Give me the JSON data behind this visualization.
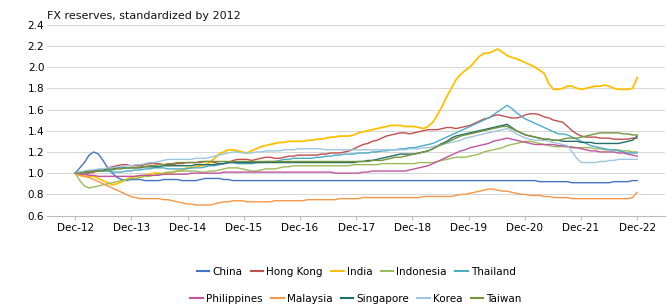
{
  "title": "FX reserves, standardized by 2012",
  "xlabels": [
    "Dec-12",
    "Dec-13",
    "Dec-14",
    "Dec-15",
    "Dec-16",
    "Dec-17",
    "Dec-18",
    "Dec-19",
    "Dec-20",
    "Dec-21",
    "Dec-22"
  ],
  "ylim": [
    0.6,
    2.4
  ],
  "yticks": [
    0.6,
    0.8,
    1.0,
    1.2,
    1.4,
    1.6,
    1.8,
    2.0,
    2.2,
    2.4
  ],
  "series": {
    "China": {
      "color": "#4472C4",
      "lw": 1.0
    },
    "Hong Kong": {
      "color": "#C0504D",
      "lw": 1.0
    },
    "India": {
      "color": "#FFC000",
      "lw": 1.3
    },
    "Indonesia": {
      "color": "#9BBB59",
      "lw": 1.0
    },
    "Thailand": {
      "color": "#4BACC6",
      "lw": 1.0
    },
    "Philippines": {
      "color": "#C055A0",
      "lw": 1.0
    },
    "Malaysia": {
      "color": "#F79646",
      "lw": 1.0
    },
    "Singapore": {
      "color": "#1F7065",
      "lw": 1.0
    },
    "Korea": {
      "color": "#9EC6E0",
      "lw": 1.0
    },
    "Taiwan": {
      "color": "#76933C",
      "lw": 1.0
    }
  },
  "legend_row1": [
    "China",
    "Hong Kong",
    "India",
    "Indonesia",
    "Thailand"
  ],
  "legend_row2": [
    "Philippines",
    "Malaysia",
    "Singapore",
    "Korea",
    "Taiwan"
  ],
  "data": {
    "China": [
      1.0,
      1.05,
      1.1,
      1.17,
      1.2,
      1.18,
      1.12,
      1.05,
      1.0,
      0.96,
      0.94,
      0.93,
      0.94,
      0.94,
      0.94,
      0.93,
      0.93,
      0.93,
      0.93,
      0.94,
      0.94,
      0.94,
      0.94,
      0.93,
      0.93,
      0.93,
      0.93,
      0.94,
      0.95,
      0.95,
      0.95,
      0.95,
      0.94,
      0.94,
      0.93,
      0.93,
      0.93,
      0.93,
      0.93,
      0.93,
      0.93,
      0.93,
      0.93,
      0.93,
      0.93,
      0.93,
      0.93,
      0.93,
      0.93,
      0.93,
      0.93,
      0.93,
      0.93,
      0.93,
      0.93,
      0.93,
      0.93,
      0.93,
      0.93,
      0.93,
      0.93,
      0.93,
      0.93,
      0.93,
      0.93,
      0.93,
      0.93,
      0.93,
      0.93,
      0.93,
      0.93,
      0.93,
      0.93,
      0.93,
      0.93,
      0.93,
      0.93,
      0.93,
      0.93,
      0.93,
      0.93,
      0.93,
      0.93,
      0.93,
      0.93,
      0.93,
      0.93,
      0.93,
      0.93,
      0.93,
      0.93,
      0.93,
      0.93,
      0.93,
      0.93,
      0.93,
      0.93,
      0.93,
      0.93,
      0.93,
      0.92,
      0.92,
      0.92,
      0.92,
      0.92,
      0.92,
      0.92,
      0.91,
      0.91,
      0.91,
      0.91,
      0.91,
      0.91,
      0.91,
      0.91,
      0.91,
      0.92,
      0.92,
      0.92,
      0.92,
      0.93,
      0.93
    ],
    "Hong Kong": [
      1.0,
      0.99,
      0.99,
      1.0,
      1.01,
      1.02,
      1.03,
      1.05,
      1.06,
      1.07,
      1.08,
      1.08,
      1.07,
      1.07,
      1.07,
      1.08,
      1.09,
      1.09,
      1.09,
      1.08,
      1.08,
      1.08,
      1.09,
      1.09,
      1.1,
      1.1,
      1.1,
      1.1,
      1.11,
      1.11,
      1.1,
      1.09,
      1.09,
      1.1,
      1.12,
      1.13,
      1.13,
      1.13,
      1.12,
      1.13,
      1.14,
      1.15,
      1.15,
      1.14,
      1.14,
      1.15,
      1.16,
      1.16,
      1.17,
      1.17,
      1.17,
      1.17,
      1.17,
      1.18,
      1.18,
      1.19,
      1.19,
      1.19,
      1.2,
      1.21,
      1.23,
      1.25,
      1.27,
      1.28,
      1.3,
      1.31,
      1.33,
      1.35,
      1.36,
      1.37,
      1.38,
      1.38,
      1.37,
      1.38,
      1.39,
      1.4,
      1.41,
      1.41,
      1.41,
      1.42,
      1.43,
      1.43,
      1.42,
      1.43,
      1.44,
      1.45,
      1.47,
      1.49,
      1.51,
      1.52,
      1.54,
      1.55,
      1.54,
      1.53,
      1.52,
      1.52,
      1.53,
      1.55,
      1.56,
      1.56,
      1.55,
      1.53,
      1.52,
      1.5,
      1.49,
      1.48,
      1.44,
      1.4,
      1.37,
      1.35,
      1.34,
      1.34,
      1.34,
      1.33,
      1.33,
      1.33,
      1.32,
      1.32,
      1.32,
      1.32,
      1.33,
      1.33
    ],
    "India": [
      1.0,
      0.98,
      0.97,
      0.97,
      0.97,
      0.95,
      0.93,
      0.91,
      0.89,
      0.9,
      0.92,
      0.94,
      0.96,
      0.97,
      0.97,
      0.98,
      0.99,
      1.0,
      1.0,
      0.99,
      1.0,
      1.01,
      1.02,
      1.03,
      1.05,
      1.05,
      1.06,
      1.07,
      1.08,
      1.1,
      1.14,
      1.18,
      1.2,
      1.22,
      1.22,
      1.21,
      1.2,
      1.19,
      1.21,
      1.23,
      1.25,
      1.26,
      1.27,
      1.28,
      1.29,
      1.29,
      1.3,
      1.3,
      1.3,
      1.3,
      1.31,
      1.31,
      1.32,
      1.32,
      1.33,
      1.34,
      1.34,
      1.35,
      1.35,
      1.35,
      1.36,
      1.38,
      1.39,
      1.4,
      1.41,
      1.42,
      1.43,
      1.44,
      1.45,
      1.45,
      1.45,
      1.44,
      1.44,
      1.44,
      1.43,
      1.42,
      1.44,
      1.48,
      1.55,
      1.63,
      1.72,
      1.8,
      1.88,
      1.93,
      1.97,
      2.0,
      2.05,
      2.1,
      2.13,
      2.13,
      2.15,
      2.17,
      2.14,
      2.11,
      2.09,
      2.08,
      2.06,
      2.04,
      2.02,
      2.0,
      1.97,
      1.94,
      1.84,
      1.79,
      1.79,
      1.8,
      1.82,
      1.82,
      1.8,
      1.79,
      1.8,
      1.81,
      1.82,
      1.82,
      1.83,
      1.82,
      1.8,
      1.79,
      1.79,
      1.79,
      1.8,
      1.9
    ],
    "Indonesia": [
      1.0,
      0.93,
      0.88,
      0.86,
      0.87,
      0.88,
      0.89,
      0.9,
      0.91,
      0.92,
      0.93,
      0.94,
      0.95,
      0.95,
      0.96,
      0.97,
      0.97,
      0.98,
      0.99,
      1.0,
      1.01,
      1.01,
      1.02,
      1.02,
      1.02,
      1.02,
      1.02,
      1.01,
      1.01,
      1.02,
      1.02,
      1.03,
      1.04,
      1.05,
      1.05,
      1.05,
      1.04,
      1.03,
      1.02,
      1.02,
      1.03,
      1.04,
      1.04,
      1.04,
      1.05,
      1.06,
      1.06,
      1.07,
      1.07,
      1.07,
      1.07,
      1.07,
      1.07,
      1.07,
      1.07,
      1.07,
      1.07,
      1.07,
      1.07,
      1.07,
      1.08,
      1.08,
      1.08,
      1.08,
      1.08,
      1.08,
      1.09,
      1.09,
      1.09,
      1.09,
      1.09,
      1.09,
      1.09,
      1.09,
      1.1,
      1.1,
      1.1,
      1.1,
      1.11,
      1.12,
      1.13,
      1.14,
      1.15,
      1.15,
      1.15,
      1.16,
      1.17,
      1.18,
      1.2,
      1.21,
      1.22,
      1.23,
      1.24,
      1.26,
      1.27,
      1.28,
      1.29,
      1.3,
      1.3,
      1.29,
      1.28,
      1.27,
      1.26,
      1.25,
      1.25,
      1.25,
      1.25,
      1.25,
      1.24,
      1.24,
      1.24,
      1.24,
      1.23,
      1.23,
      1.22,
      1.22,
      1.22,
      1.22,
      1.21,
      1.21,
      1.2,
      1.2
    ],
    "Thailand": [
      1.0,
      1.0,
      1.0,
      1.01,
      1.02,
      1.02,
      1.02,
      1.02,
      1.01,
      1.01,
      1.01,
      1.02,
      1.02,
      1.03,
      1.03,
      1.04,
      1.04,
      1.05,
      1.05,
      1.05,
      1.04,
      1.04,
      1.04,
      1.04,
      1.04,
      1.05,
      1.05,
      1.05,
      1.06,
      1.07,
      1.07,
      1.08,
      1.09,
      1.1,
      1.1,
      1.09,
      1.09,
      1.09,
      1.09,
      1.1,
      1.1,
      1.11,
      1.11,
      1.11,
      1.12,
      1.13,
      1.13,
      1.14,
      1.14,
      1.14,
      1.14,
      1.14,
      1.15,
      1.15,
      1.16,
      1.16,
      1.17,
      1.17,
      1.18,
      1.18,
      1.18,
      1.19,
      1.19,
      1.19,
      1.2,
      1.2,
      1.21,
      1.21,
      1.22,
      1.22,
      1.23,
      1.23,
      1.24,
      1.24,
      1.25,
      1.26,
      1.27,
      1.28,
      1.3,
      1.32,
      1.34,
      1.36,
      1.38,
      1.4,
      1.42,
      1.44,
      1.46,
      1.48,
      1.5,
      1.52,
      1.55,
      1.58,
      1.61,
      1.64,
      1.61,
      1.57,
      1.54,
      1.51,
      1.49,
      1.47,
      1.45,
      1.43,
      1.41,
      1.39,
      1.37,
      1.37,
      1.36,
      1.34,
      1.32,
      1.3,
      1.28,
      1.26,
      1.25,
      1.24,
      1.23,
      1.22,
      1.22,
      1.21,
      1.2,
      1.19,
      1.19,
      1.19
    ],
    "Philippines": [
      1.0,
      0.99,
      0.99,
      0.98,
      0.98,
      0.97,
      0.97,
      0.97,
      0.97,
      0.97,
      0.97,
      0.97,
      0.97,
      0.97,
      0.98,
      0.98,
      0.98,
      0.98,
      0.98,
      0.99,
      0.99,
      0.99,
      0.99,
      0.99,
      0.99,
      1.0,
      1.0,
      1.0,
      1.0,
      1.0,
      1.0,
      1.0,
      1.01,
      1.01,
      1.01,
      1.01,
      1.01,
      1.01,
      1.01,
      1.01,
      1.01,
      1.01,
      1.01,
      1.01,
      1.01,
      1.01,
      1.01,
      1.01,
      1.01,
      1.01,
      1.01,
      1.01,
      1.01,
      1.01,
      1.01,
      1.01,
      1.0,
      1.0,
      1.0,
      1.0,
      1.0,
      1.0,
      1.01,
      1.01,
      1.02,
      1.02,
      1.02,
      1.02,
      1.02,
      1.02,
      1.02,
      1.02,
      1.03,
      1.04,
      1.05,
      1.06,
      1.07,
      1.09,
      1.11,
      1.13,
      1.15,
      1.17,
      1.19,
      1.21,
      1.22,
      1.24,
      1.25,
      1.26,
      1.27,
      1.28,
      1.3,
      1.31,
      1.32,
      1.33,
      1.32,
      1.31,
      1.3,
      1.29,
      1.28,
      1.27,
      1.27,
      1.27,
      1.27,
      1.27,
      1.26,
      1.26,
      1.25,
      1.24,
      1.24,
      1.23,
      1.22,
      1.21,
      1.21,
      1.2,
      1.2,
      1.2,
      1.2,
      1.19,
      1.19,
      1.18,
      1.17,
      1.16
    ],
    "Malaysia": [
      1.0,
      0.98,
      0.97,
      0.96,
      0.94,
      0.92,
      0.9,
      0.88,
      0.86,
      0.84,
      0.82,
      0.8,
      0.78,
      0.77,
      0.76,
      0.76,
      0.76,
      0.76,
      0.76,
      0.75,
      0.75,
      0.74,
      0.73,
      0.72,
      0.71,
      0.71,
      0.7,
      0.7,
      0.7,
      0.7,
      0.71,
      0.72,
      0.73,
      0.73,
      0.74,
      0.74,
      0.74,
      0.73,
      0.73,
      0.73,
      0.73,
      0.73,
      0.73,
      0.74,
      0.74,
      0.74,
      0.74,
      0.74,
      0.74,
      0.74,
      0.75,
      0.75,
      0.75,
      0.75,
      0.75,
      0.75,
      0.75,
      0.76,
      0.76,
      0.76,
      0.76,
      0.76,
      0.77,
      0.77,
      0.77,
      0.77,
      0.77,
      0.77,
      0.77,
      0.77,
      0.77,
      0.77,
      0.77,
      0.77,
      0.77,
      0.78,
      0.78,
      0.78,
      0.78,
      0.78,
      0.78,
      0.78,
      0.79,
      0.8,
      0.8,
      0.81,
      0.82,
      0.83,
      0.84,
      0.85,
      0.85,
      0.84,
      0.83,
      0.83,
      0.82,
      0.81,
      0.8,
      0.8,
      0.79,
      0.79,
      0.79,
      0.78,
      0.78,
      0.77,
      0.77,
      0.77,
      0.77,
      0.76,
      0.76,
      0.76,
      0.76,
      0.76,
      0.76,
      0.76,
      0.76,
      0.76,
      0.76,
      0.76,
      0.76,
      0.76,
      0.77,
      0.82
    ],
    "Singapore": [
      1.0,
      1.01,
      1.01,
      1.02,
      1.02,
      1.03,
      1.03,
      1.04,
      1.04,
      1.05,
      1.05,
      1.05,
      1.05,
      1.05,
      1.05,
      1.06,
      1.06,
      1.06,
      1.06,
      1.07,
      1.07,
      1.07,
      1.07,
      1.07,
      1.07,
      1.07,
      1.08,
      1.08,
      1.08,
      1.08,
      1.08,
      1.09,
      1.09,
      1.1,
      1.1,
      1.1,
      1.1,
      1.1,
      1.1,
      1.1,
      1.1,
      1.1,
      1.1,
      1.1,
      1.1,
      1.1,
      1.1,
      1.1,
      1.1,
      1.1,
      1.1,
      1.1,
      1.1,
      1.1,
      1.1,
      1.1,
      1.1,
      1.1,
      1.1,
      1.1,
      1.1,
      1.11,
      1.11,
      1.12,
      1.12,
      1.13,
      1.14,
      1.15,
      1.16,
      1.17,
      1.18,
      1.18,
      1.18,
      1.18,
      1.19,
      1.2,
      1.21,
      1.23,
      1.26,
      1.28,
      1.3,
      1.33,
      1.35,
      1.36,
      1.37,
      1.38,
      1.39,
      1.4,
      1.41,
      1.42,
      1.43,
      1.44,
      1.45,
      1.46,
      1.43,
      1.4,
      1.38,
      1.36,
      1.35,
      1.34,
      1.33,
      1.32,
      1.32,
      1.31,
      1.31,
      1.3,
      1.3,
      1.3,
      1.3,
      1.29,
      1.29,
      1.29,
      1.28,
      1.28,
      1.28,
      1.28,
      1.28,
      1.28,
      1.29,
      1.3,
      1.31,
      1.35
    ],
    "Korea": [
      1.0,
      1.01,
      1.02,
      1.03,
      1.03,
      1.04,
      1.04,
      1.05,
      1.05,
      1.06,
      1.06,
      1.07,
      1.07,
      1.08,
      1.08,
      1.09,
      1.1,
      1.1,
      1.11,
      1.12,
      1.13,
      1.13,
      1.13,
      1.13,
      1.13,
      1.13,
      1.14,
      1.14,
      1.14,
      1.15,
      1.16,
      1.17,
      1.18,
      1.19,
      1.2,
      1.2,
      1.19,
      1.19,
      1.19,
      1.2,
      1.2,
      1.21,
      1.21,
      1.21,
      1.21,
      1.22,
      1.22,
      1.22,
      1.23,
      1.23,
      1.23,
      1.23,
      1.23,
      1.23,
      1.22,
      1.22,
      1.22,
      1.22,
      1.22,
      1.22,
      1.22,
      1.22,
      1.22,
      1.22,
      1.22,
      1.22,
      1.22,
      1.22,
      1.22,
      1.22,
      1.22,
      1.22,
      1.23,
      1.23,
      1.23,
      1.24,
      1.24,
      1.25,
      1.26,
      1.27,
      1.28,
      1.29,
      1.3,
      1.31,
      1.33,
      1.34,
      1.35,
      1.36,
      1.37,
      1.38,
      1.39,
      1.4,
      1.41,
      1.42,
      1.4,
      1.37,
      1.35,
      1.33,
      1.32,
      1.31,
      1.31,
      1.31,
      1.3,
      1.29,
      1.28,
      1.27,
      1.26,
      1.2,
      1.14,
      1.1,
      1.1,
      1.1,
      1.1,
      1.11,
      1.11,
      1.12,
      1.12,
      1.13,
      1.13,
      1.13,
      1.13,
      1.13
    ],
    "Taiwan": [
      1.0,
      1.0,
      1.01,
      1.01,
      1.02,
      1.02,
      1.02,
      1.03,
      1.03,
      1.04,
      1.04,
      1.05,
      1.05,
      1.05,
      1.06,
      1.06,
      1.07,
      1.07,
      1.08,
      1.08,
      1.09,
      1.09,
      1.1,
      1.1,
      1.1,
      1.1,
      1.1,
      1.11,
      1.11,
      1.11,
      1.11,
      1.11,
      1.11,
      1.11,
      1.11,
      1.11,
      1.11,
      1.11,
      1.11,
      1.11,
      1.11,
      1.11,
      1.11,
      1.11,
      1.11,
      1.11,
      1.11,
      1.11,
      1.11,
      1.11,
      1.11,
      1.11,
      1.11,
      1.11,
      1.11,
      1.11,
      1.11,
      1.11,
      1.11,
      1.11,
      1.11,
      1.11,
      1.11,
      1.11,
      1.12,
      1.12,
      1.12,
      1.13,
      1.14,
      1.15,
      1.15,
      1.16,
      1.17,
      1.18,
      1.19,
      1.2,
      1.21,
      1.23,
      1.25,
      1.27,
      1.29,
      1.31,
      1.33,
      1.35,
      1.36,
      1.37,
      1.38,
      1.39,
      1.4,
      1.41,
      1.42,
      1.43,
      1.44,
      1.44,
      1.42,
      1.4,
      1.38,
      1.36,
      1.35,
      1.34,
      1.33,
      1.32,
      1.32,
      1.31,
      1.31,
      1.32,
      1.33,
      1.33,
      1.33,
      1.34,
      1.35,
      1.36,
      1.37,
      1.38,
      1.38,
      1.38,
      1.38,
      1.38,
      1.37,
      1.37,
      1.36,
      1.36
    ]
  },
  "background_color": "#ffffff",
  "grid_color": "#d0d0d0",
  "title_fontsize": 8.0,
  "axis_fontsize": 7.5,
  "legend_fontsize": 7.5
}
